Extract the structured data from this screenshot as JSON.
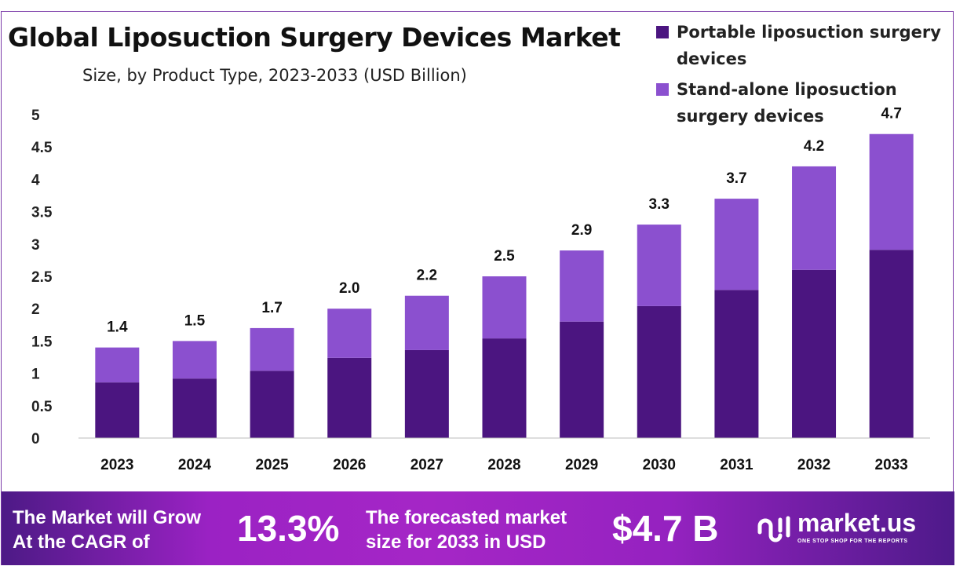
{
  "chart_data": {
    "type": "bar",
    "stacked": true,
    "title": "Global Liposuction Surgery Devices Market",
    "subtitle": "Size, by Product Type, 2023-2033 (USD Billion)",
    "categories": [
      "2023",
      "2024",
      "2025",
      "2026",
      "2027",
      "2028",
      "2029",
      "2030",
      "2031",
      "2032",
      "2033"
    ],
    "series": [
      {
        "name": "Portable liposuction surgery devices",
        "color": "#4b1580",
        "values": [
          0.86,
          0.92,
          1.04,
          1.24,
          1.36,
          1.54,
          1.8,
          2.04,
          2.29,
          2.6,
          2.91
        ]
      },
      {
        "name": "Stand-alone liposuction surgery devices",
        "color": "#8b50cf",
        "values": [
          0.54,
          0.58,
          0.66,
          0.76,
          0.84,
          0.96,
          1.1,
          1.26,
          1.41,
          1.6,
          1.79
        ]
      }
    ],
    "totals_labels": [
      "1.4",
      "1.5",
      "1.7",
      "2.0",
      "2.2",
      "2.5",
      "2.9",
      "3.3",
      "3.7",
      "4.2",
      "4.7"
    ],
    "totals": [
      1.4,
      1.5,
      1.7,
      2.0,
      2.2,
      2.5,
      2.9,
      3.3,
      3.7,
      4.2,
      4.7
    ],
    "yticks": [
      "0",
      "0.5",
      "1",
      "1.5",
      "2",
      "2.5",
      "3",
      "3.5",
      "4",
      "4.5",
      "5"
    ],
    "ylim": [
      0,
      5
    ],
    "grid": false,
    "legend_placement": "top-right"
  },
  "banner": {
    "cagr_text_1": "The Market will Grow",
    "cagr_text_2": "At the CAGR of",
    "cagr_value": "13.3%",
    "forecast_text_1": "The forecasted market",
    "forecast_text_2": "size for 2033 in USD",
    "forecast_value": "$4.7 B",
    "logo_name": "market.us",
    "logo_tagline": "ONE STOP SHOP FOR THE REPORTS"
  }
}
